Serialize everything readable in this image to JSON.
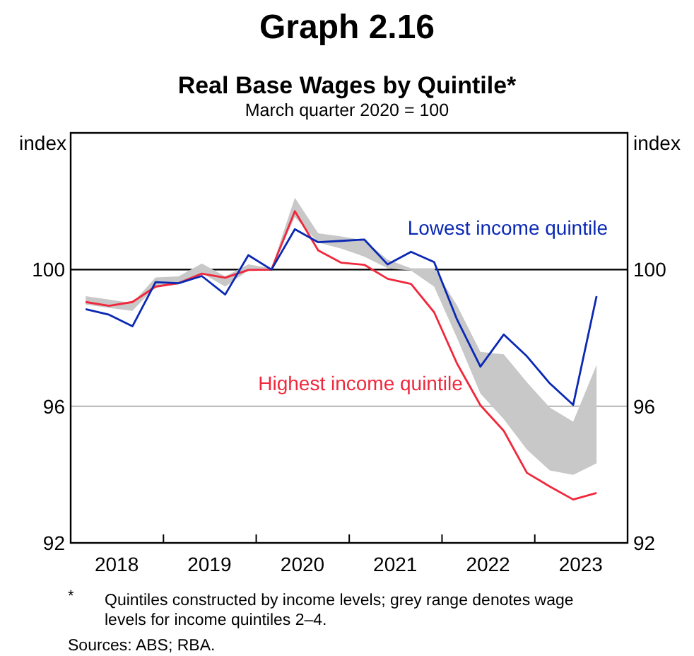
{
  "chart_data": {
    "type": "line",
    "title": "Graph 2.16",
    "subtitle": "Real Base Wages by Quintile*",
    "ylabel": "index",
    "y2label": "index",
    "annotations": [
      "March quarter 2020 = 100",
      "* Quintiles constructed by income levels; grey range denotes wage levels for income quintiles 2–4.",
      "Sources: ABS; RBA."
    ],
    "x": [
      "2018-03",
      "2018-06",
      "2018-09",
      "2018-12",
      "2019-03",
      "2019-06",
      "2019-09",
      "2019-12",
      "2020-03",
      "2020-06",
      "2020-09",
      "2020-12",
      "2021-03",
      "2021-06",
      "2021-09",
      "2021-12",
      "2022-03",
      "2022-06",
      "2022-09",
      "2022-12",
      "2023-03",
      "2023-06",
      "2023-09"
    ],
    "series": [
      {
        "type": "area",
        "color": "#c8c8c8",
        "values": [
          null,
          null,
          null,
          null,
          null,
          null,
          null,
          null,
          null,
          null,
          null,
          null,
          null,
          null,
          null,
          null,
          null,
          null,
          null,
          null,
          null,
          null,
          null
        ],
        "upper": [
          99.22,
          99.12,
          99.02,
          99.77,
          99.8,
          100.18,
          99.8,
          100.15,
          100.04,
          102.1,
          101.06,
          100.97,
          100.86,
          100.29,
          100.04,
          100.04,
          98.95,
          97.59,
          97.52,
          96.7,
          95.96,
          95.55,
          97.21
        ],
        "lower": [
          98.98,
          98.88,
          98.79,
          99.5,
          99.56,
          99.9,
          99.5,
          99.97,
          100,
          101.54,
          100.79,
          100.61,
          100.38,
          100.04,
          99.97,
          99.5,
          98.0,
          96.37,
          95.62,
          94.73,
          94.12,
          93.99,
          94.33
        ]
      },
      {
        "name": "Highest income quintile",
        "color": "#f0283c",
        "values": [
          99.05,
          98.94,
          99.05,
          99.5,
          99.6,
          99.88,
          99.76,
          99.99,
          100,
          101.71,
          100.56,
          100.2,
          100.14,
          99.73,
          99.58,
          98.75,
          97.25,
          96.03,
          95.28,
          94.05,
          93.65,
          93.27,
          93.46
        ]
      },
      {
        "name": "Lowest income quintile",
        "color": "#0a28b4",
        "values": [
          98.84,
          98.68,
          98.34,
          99.63,
          99.6,
          99.81,
          99.27,
          100.42,
          100,
          101.18,
          100.8,
          100.84,
          100.88,
          100.15,
          100.52,
          100.22,
          98.54,
          97.16,
          98.1,
          97.46,
          96.67,
          96.04,
          99.22
        ]
      }
    ],
    "xlim": [
      "2018-01",
      "2024-01"
    ],
    "xticks": [
      {
        "value": "2018-07",
        "label": "2018"
      },
      {
        "value": "2019-01",
        "label": null
      },
      {
        "value": "2019-07",
        "label": "2019"
      },
      {
        "value": "2020-01",
        "label": null
      },
      {
        "value": "2020-07",
        "label": "2020"
      },
      {
        "value": "2021-01",
        "label": null
      },
      {
        "value": "2021-07",
        "label": "2021"
      },
      {
        "value": "2022-01",
        "label": null
      },
      {
        "value": "2022-07",
        "label": "2022"
      },
      {
        "value": "2023-01",
        "label": null
      },
      {
        "value": "2023-07",
        "label": "2023"
      }
    ],
    "ylim": [
      92,
      104
    ],
    "yticks": [
      92,
      96,
      100
    ],
    "y2lim": [
      92,
      104
    ],
    "y2ticks": [
      92,
      96,
      100
    ],
    "ref_lines": [
      {
        "axis": "y",
        "value": 100,
        "color": "#000000"
      }
    ],
    "grid": "y"
  }
}
